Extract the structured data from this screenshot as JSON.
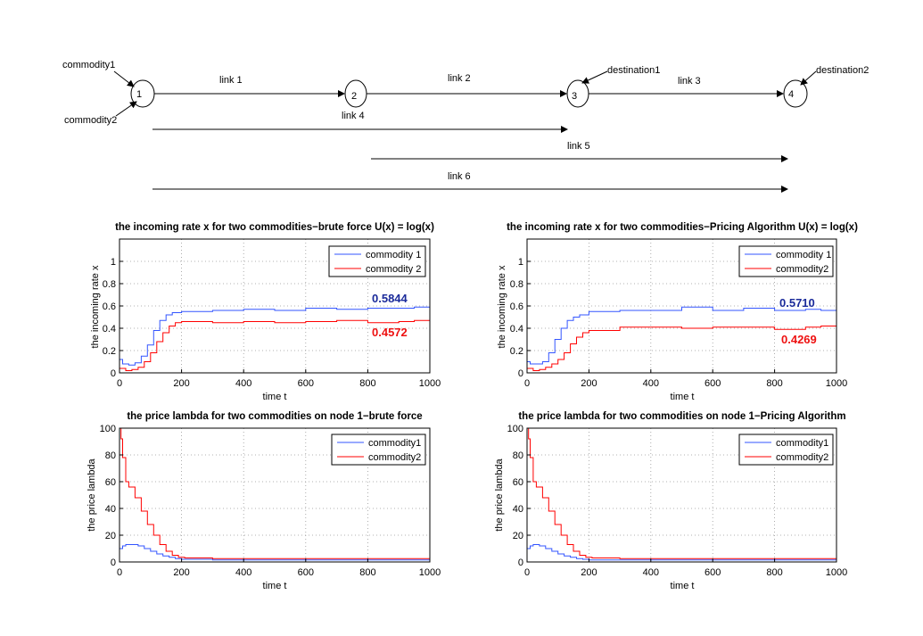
{
  "network": {
    "nodes": [
      {
        "id": "n1",
        "label": "1"
      },
      {
        "id": "n2",
        "label": "2"
      },
      {
        "id": "n3",
        "label": "3"
      },
      {
        "id": "n4",
        "label": "4"
      }
    ],
    "links": [
      {
        "id": "link1",
        "label": "link 1"
      },
      {
        "id": "link2",
        "label": "link 2"
      },
      {
        "id": "link3",
        "label": "link 3"
      },
      {
        "id": "link4",
        "label": "link 4"
      },
      {
        "id": "link5",
        "label": "link 5"
      },
      {
        "id": "link6",
        "label": "link 6"
      }
    ],
    "annotations": [
      {
        "id": "commodity1",
        "label": "commodity1"
      },
      {
        "id": "commodity2",
        "label": "commodity2"
      },
      {
        "id": "destination1",
        "label": "destination1"
      },
      {
        "id": "destination2",
        "label": "destination2"
      }
    ]
  },
  "chart_data": [
    {
      "type": "line",
      "title": "the incoming rate x for two commodities−brute force U(x) = log(x)",
      "xlabel": "time t",
      "ylabel": "the incoming rate x",
      "xlim": [
        0,
        1000
      ],
      "ylim": [
        0,
        1.2
      ],
      "xticks": [
        0,
        200,
        400,
        600,
        800,
        1000
      ],
      "yticks": [
        0,
        0.2,
        0.4,
        0.6,
        0.8,
        1
      ],
      "grid": true,
      "legend": "top-right",
      "series": [
        {
          "name": "commodity 1",
          "color": "#3355ff",
          "points": [
            [
              0,
              0.12
            ],
            [
              10,
              0.08
            ],
            [
              30,
              0.07
            ],
            [
              50,
              0.09
            ],
            [
              70,
              0.15
            ],
            [
              90,
              0.25
            ],
            [
              110,
              0.38
            ],
            [
              130,
              0.47
            ],
            [
              150,
              0.52
            ],
            [
              170,
              0.54
            ],
            [
              200,
              0.55
            ],
            [
              300,
              0.56
            ],
            [
              400,
              0.57
            ],
            [
              500,
              0.56
            ],
            [
              600,
              0.58
            ],
            [
              700,
              0.57
            ],
            [
              800,
              0.58
            ],
            [
              900,
              0.58
            ],
            [
              950,
              0.59
            ],
            [
              1000,
              0.6
            ]
          ]
        },
        {
          "name": "commodity 2",
          "color": "#ff0000",
          "points": [
            [
              0,
              0.04
            ],
            [
              20,
              0.02
            ],
            [
              40,
              0.03
            ],
            [
              60,
              0.05
            ],
            [
              80,
              0.1
            ],
            [
              100,
              0.18
            ],
            [
              120,
              0.28
            ],
            [
              140,
              0.36
            ],
            [
              160,
              0.42
            ],
            [
              180,
              0.45
            ],
            [
              200,
              0.46
            ],
            [
              300,
              0.45
            ],
            [
              400,
              0.46
            ],
            [
              500,
              0.45
            ],
            [
              600,
              0.46
            ],
            [
              700,
              0.47
            ],
            [
              800,
              0.45
            ],
            [
              900,
              0.46
            ],
            [
              950,
              0.47
            ],
            [
              1000,
              0.44
            ]
          ]
        }
      ],
      "annotations": [
        {
          "text": "0.5844",
          "x": 820,
          "y": 0.65,
          "color": "#1a2a9a"
        },
        {
          "text": "0.4572",
          "x": 820,
          "y": 0.37,
          "color": "#ee1111"
        }
      ]
    },
    {
      "type": "line",
      "title": "the incoming rate x for two commodities−Pricing Algorithm U(x) = log(x)",
      "xlabel": "time t",
      "ylabel": "the incoming rate x",
      "xlim": [
        0,
        1000
      ],
      "ylim": [
        0,
        1.2
      ],
      "xticks": [
        0,
        200,
        400,
        600,
        800,
        1000
      ],
      "yticks": [
        0,
        0.2,
        0.4,
        0.6,
        0.8,
        1
      ],
      "grid": true,
      "legend": "top-right",
      "series": [
        {
          "name": "commodity 1",
          "color": "#3355ff",
          "points": [
            [
              0,
              0.1
            ],
            [
              10,
              0.08
            ],
            [
              30,
              0.08
            ],
            [
              50,
              0.1
            ],
            [
              70,
              0.18
            ],
            [
              90,
              0.3
            ],
            [
              110,
              0.4
            ],
            [
              130,
              0.47
            ],
            [
              150,
              0.5
            ],
            [
              170,
              0.52
            ],
            [
              200,
              0.55
            ],
            [
              300,
              0.56
            ],
            [
              400,
              0.56
            ],
            [
              500,
              0.59
            ],
            [
              600,
              0.56
            ],
            [
              700,
              0.58
            ],
            [
              800,
              0.56
            ],
            [
              900,
              0.57
            ],
            [
              950,
              0.56
            ],
            [
              1000,
              0.57
            ]
          ]
        },
        {
          "name": "commodity2",
          "color": "#ff0000",
          "points": [
            [
              0,
              0.04
            ],
            [
              20,
              0.02
            ],
            [
              40,
              0.03
            ],
            [
              60,
              0.05
            ],
            [
              80,
              0.08
            ],
            [
              100,
              0.12
            ],
            [
              120,
              0.18
            ],
            [
              140,
              0.26
            ],
            [
              160,
              0.32
            ],
            [
              180,
              0.36
            ],
            [
              200,
              0.38
            ],
            [
              300,
              0.41
            ],
            [
              400,
              0.41
            ],
            [
              500,
              0.4
            ],
            [
              600,
              0.41
            ],
            [
              700,
              0.41
            ],
            [
              800,
              0.39
            ],
            [
              900,
              0.41
            ],
            [
              950,
              0.42
            ],
            [
              1000,
              0.4
            ]
          ]
        }
      ],
      "annotations": [
        {
          "text": "0.5710",
          "x": 820,
          "y": 0.63,
          "color": "#1a2a9a"
        },
        {
          "text": "0.4269",
          "x": 830,
          "y": 0.33,
          "color": "#ee1111"
        }
      ]
    },
    {
      "type": "line",
      "title": "the price lambda for two commodities on node 1−brute force",
      "xlabel": "time t",
      "ylabel": "the price lambda",
      "xlim": [
        0,
        1000
      ],
      "ylim": [
        0,
        100
      ],
      "xticks": [
        0,
        200,
        400,
        600,
        800,
        1000
      ],
      "yticks": [
        0,
        20,
        40,
        60,
        80,
        100
      ],
      "grid": true,
      "legend": "top-right",
      "series": [
        {
          "name": "commodity1",
          "color": "#3355ff",
          "points": [
            [
              0,
              10
            ],
            [
              10,
              12
            ],
            [
              20,
              13
            ],
            [
              40,
              13
            ],
            [
              60,
              12
            ],
            [
              80,
              10
            ],
            [
              100,
              8
            ],
            [
              120,
              6
            ],
            [
              140,
              4.5
            ],
            [
              160,
              3.5
            ],
            [
              180,
              2.5
            ],
            [
              200,
              2
            ],
            [
              300,
              1.5
            ],
            [
              500,
              1.5
            ],
            [
              1000,
              1.5
            ]
          ]
        },
        {
          "name": "commodity2",
          "color": "#ff0000",
          "points": [
            [
              0,
              100
            ],
            [
              5,
              92
            ],
            [
              10,
              78
            ],
            [
              20,
              60
            ],
            [
              30,
              56
            ],
            [
              50,
              48
            ],
            [
              70,
              38
            ],
            [
              90,
              28
            ],
            [
              110,
              20
            ],
            [
              130,
              13
            ],
            [
              150,
              8
            ],
            [
              170,
              5
            ],
            [
              190,
              3.5
            ],
            [
              210,
              3
            ],
            [
              300,
              2.5
            ],
            [
              500,
              2.5
            ],
            [
              1000,
              2.5
            ]
          ]
        }
      ]
    },
    {
      "type": "line",
      "title": "the price lambda for two commodities on node 1−Pricing Algorithm",
      "xlabel": "time t",
      "ylabel": "the price lambda",
      "xlim": [
        0,
        1000
      ],
      "ylim": [
        0,
        100
      ],
      "xticks": [
        0,
        200,
        400,
        600,
        800,
        1000
      ],
      "yticks": [
        0,
        20,
        40,
        60,
        80,
        100
      ],
      "grid": true,
      "legend": "top-right",
      "series": [
        {
          "name": "commodity1",
          "color": "#3355ff",
          "points": [
            [
              0,
              10
            ],
            [
              10,
              12
            ],
            [
              20,
              13
            ],
            [
              40,
              12
            ],
            [
              60,
              10
            ],
            [
              80,
              8
            ],
            [
              100,
              6
            ],
            [
              120,
              4.5
            ],
            [
              140,
              3.5
            ],
            [
              160,
              2.5
            ],
            [
              180,
              2
            ],
            [
              200,
              1.5
            ],
            [
              300,
              1.5
            ],
            [
              1000,
              1.5
            ]
          ]
        },
        {
          "name": "commodity2",
          "color": "#ff0000",
          "points": [
            [
              0,
              100
            ],
            [
              5,
              92
            ],
            [
              10,
              78
            ],
            [
              20,
              60
            ],
            [
              30,
              56
            ],
            [
              50,
              48
            ],
            [
              70,
              38
            ],
            [
              90,
              28
            ],
            [
              110,
              20
            ],
            [
              130,
              13
            ],
            [
              150,
              8
            ],
            [
              170,
              5
            ],
            [
              190,
              3.5
            ],
            [
              210,
              3
            ],
            [
              300,
              2.5
            ],
            [
              500,
              2.5
            ],
            [
              1000,
              2.5
            ]
          ]
        }
      ]
    }
  ]
}
